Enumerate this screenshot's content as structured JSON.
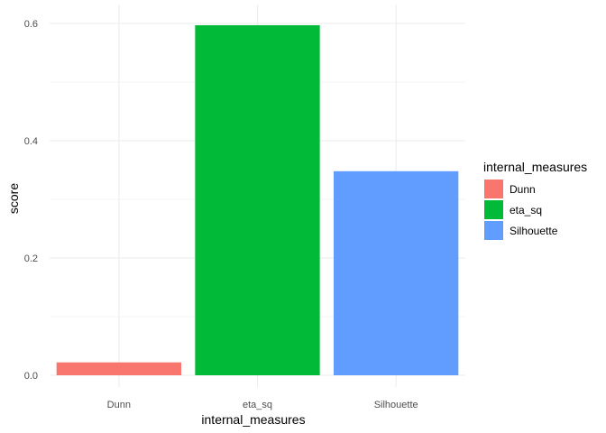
{
  "chart_data": {
    "type": "bar",
    "title": "",
    "xlabel": "internal_measures",
    "ylabel": "score",
    "categories": [
      "Dunn",
      "eta_sq",
      "Silhouette"
    ],
    "values": [
      0.022,
      0.597,
      0.348
    ],
    "colors": [
      "#F8766D",
      "#00BA38",
      "#619CFF"
    ],
    "ylim": [
      0,
      0.62
    ],
    "y_ticks": [
      0.0,
      0.2,
      0.4,
      0.6
    ],
    "y_tick_labels": [
      "0.0",
      "0.2",
      "0.4",
      "0.6"
    ],
    "grid": true,
    "gridline_color": "#ebebeb",
    "legend": {
      "title": "internal_measures",
      "placement": "right",
      "items": [
        "Dunn",
        "eta_sq",
        "Silhouette"
      ]
    }
  }
}
